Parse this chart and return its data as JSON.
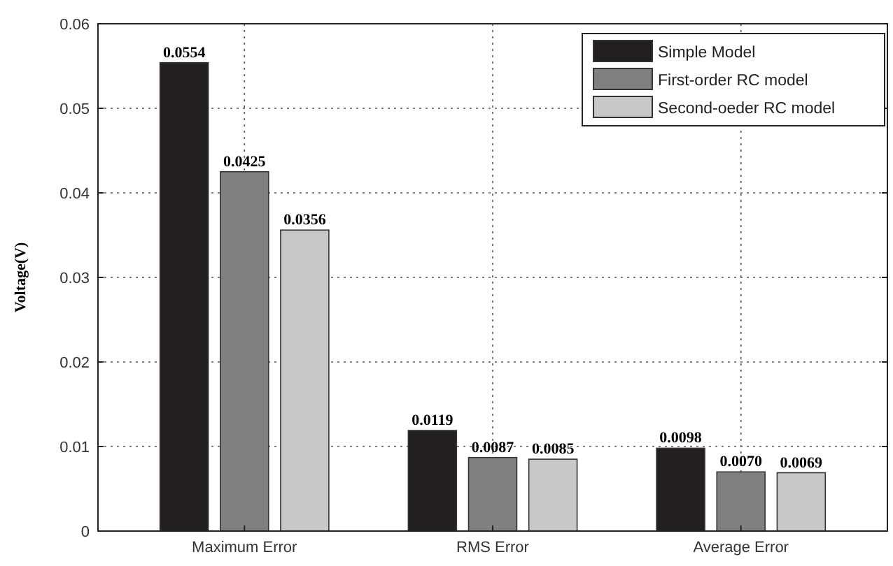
{
  "chart_data": {
    "type": "bar",
    "ylabel": "Voltage(V)",
    "categories": [
      "Maximum Error",
      "RMS Error",
      "Average Error"
    ],
    "series": [
      {
        "name": "Simple Model",
        "color": "#231f20",
        "values": [
          0.0554,
          0.0119,
          0.0098
        ],
        "value_labels": [
          "0.0554",
          "0.0119",
          "0.0098"
        ]
      },
      {
        "name": "First-order RC model",
        "color": "#808080",
        "values": [
          0.0425,
          0.0087,
          0.007
        ],
        "value_labels": [
          "0.0425",
          "0.0087",
          "0.0070"
        ]
      },
      {
        "name": "Second-oeder RC model",
        "color": "#c8c8c8",
        "values": [
          0.0356,
          0.0085,
          0.0069
        ],
        "value_labels": [
          "0.0356",
          "0.0085",
          "0.0069"
        ]
      }
    ],
    "ylim": [
      0,
      0.06
    ],
    "yticks": [
      0,
      0.01,
      0.02,
      0.03,
      0.04,
      0.05,
      0.06
    ],
    "grid": true,
    "legend": "top right"
  }
}
